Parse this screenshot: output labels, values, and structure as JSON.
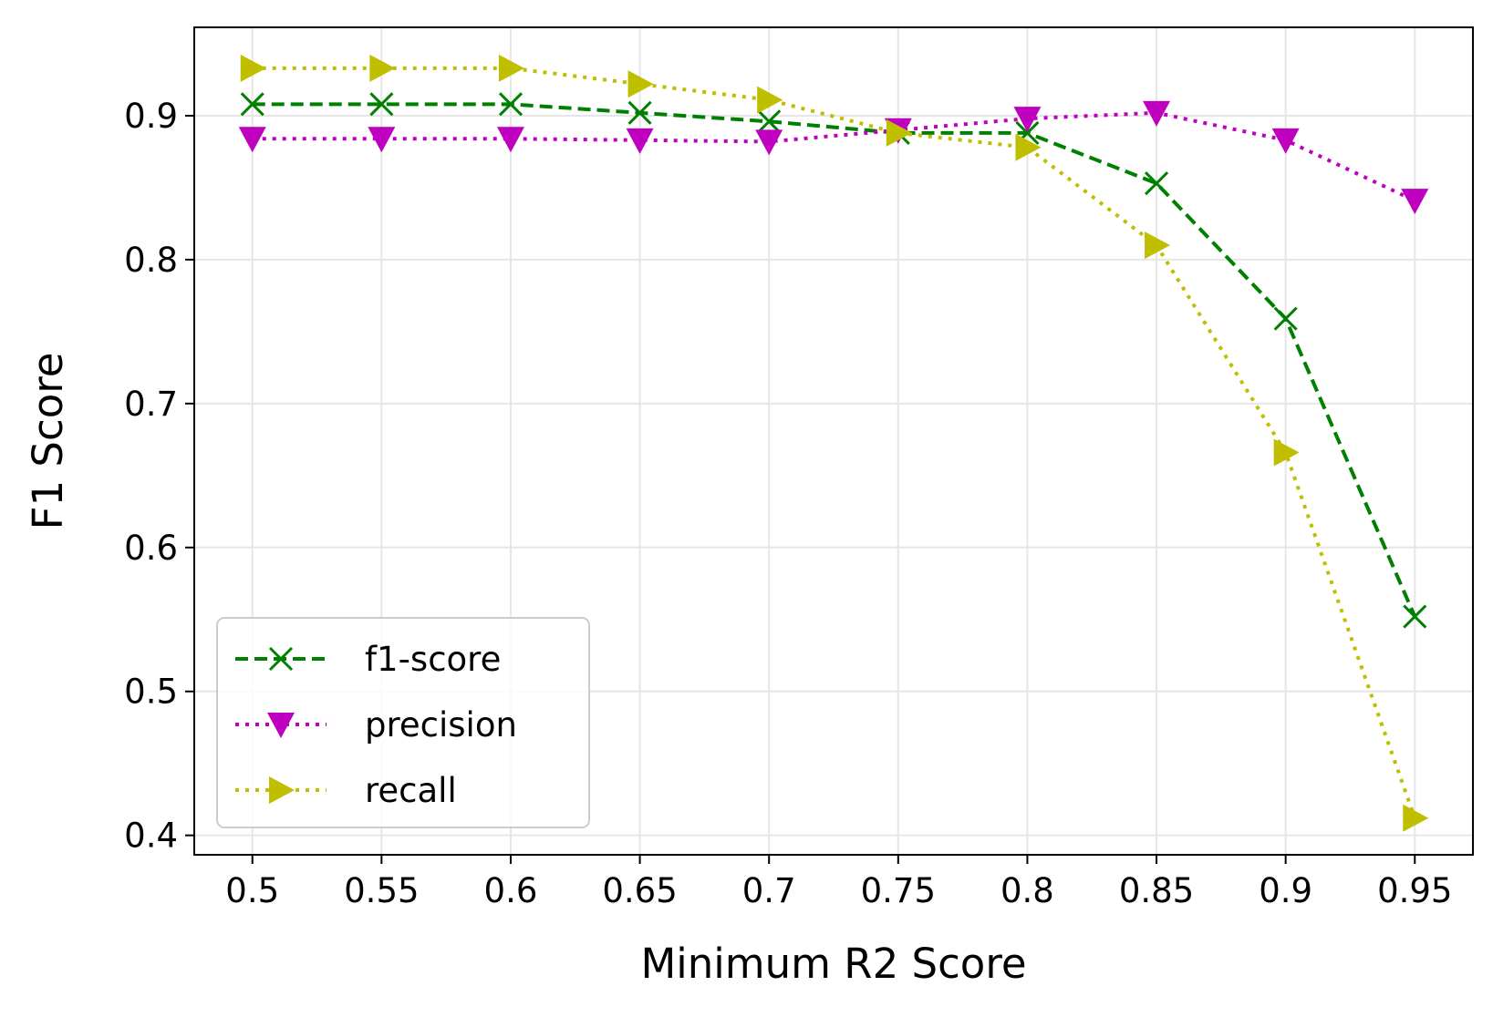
{
  "chart_data": {
    "type": "line",
    "title": "",
    "xlabel": "Minimum R2 Score",
    "ylabel": "F1 Score",
    "x": [
      0.5,
      0.55,
      0.6,
      0.65,
      0.7,
      0.75,
      0.8,
      0.85,
      0.9,
      0.95
    ],
    "x_tick_labels": [
      "0.5",
      "0.55",
      "0.6",
      "0.65",
      "0.7",
      "0.75",
      "0.8",
      "0.85",
      "0.9",
      "0.95"
    ],
    "y_ticks": [
      0.4,
      0.5,
      0.6,
      0.7,
      0.8,
      0.9
    ],
    "y_tick_labels": [
      "0.4",
      "0.5",
      "0.6",
      "0.7",
      "0.8",
      "0.9"
    ],
    "xlim": [
      0.4775,
      0.9725
    ],
    "ylim": [
      0.3865,
      0.9614
    ],
    "grid": true,
    "legend_position": "lower-left",
    "series": [
      {
        "name": "f1-score",
        "color": "#008000",
        "line_style": "dashed",
        "marker": "x",
        "values": [
          0.908,
          0.908,
          0.908,
          0.902,
          0.896,
          0.888,
          0.888,
          0.853,
          0.759,
          0.552
        ]
      },
      {
        "name": "precision",
        "color": "#bf00bf",
        "line_style": "dotted",
        "marker": "triangle-down",
        "values": [
          0.884,
          0.884,
          0.884,
          0.883,
          0.882,
          0.89,
          0.898,
          0.902,
          0.883,
          0.841
        ]
      },
      {
        "name": "recall",
        "color": "#bfbf00",
        "line_style": "dotted",
        "marker": "triangle-right",
        "values": [
          0.933,
          0.933,
          0.933,
          0.922,
          0.911,
          0.888,
          0.878,
          0.81,
          0.666,
          0.412
        ]
      }
    ]
  }
}
